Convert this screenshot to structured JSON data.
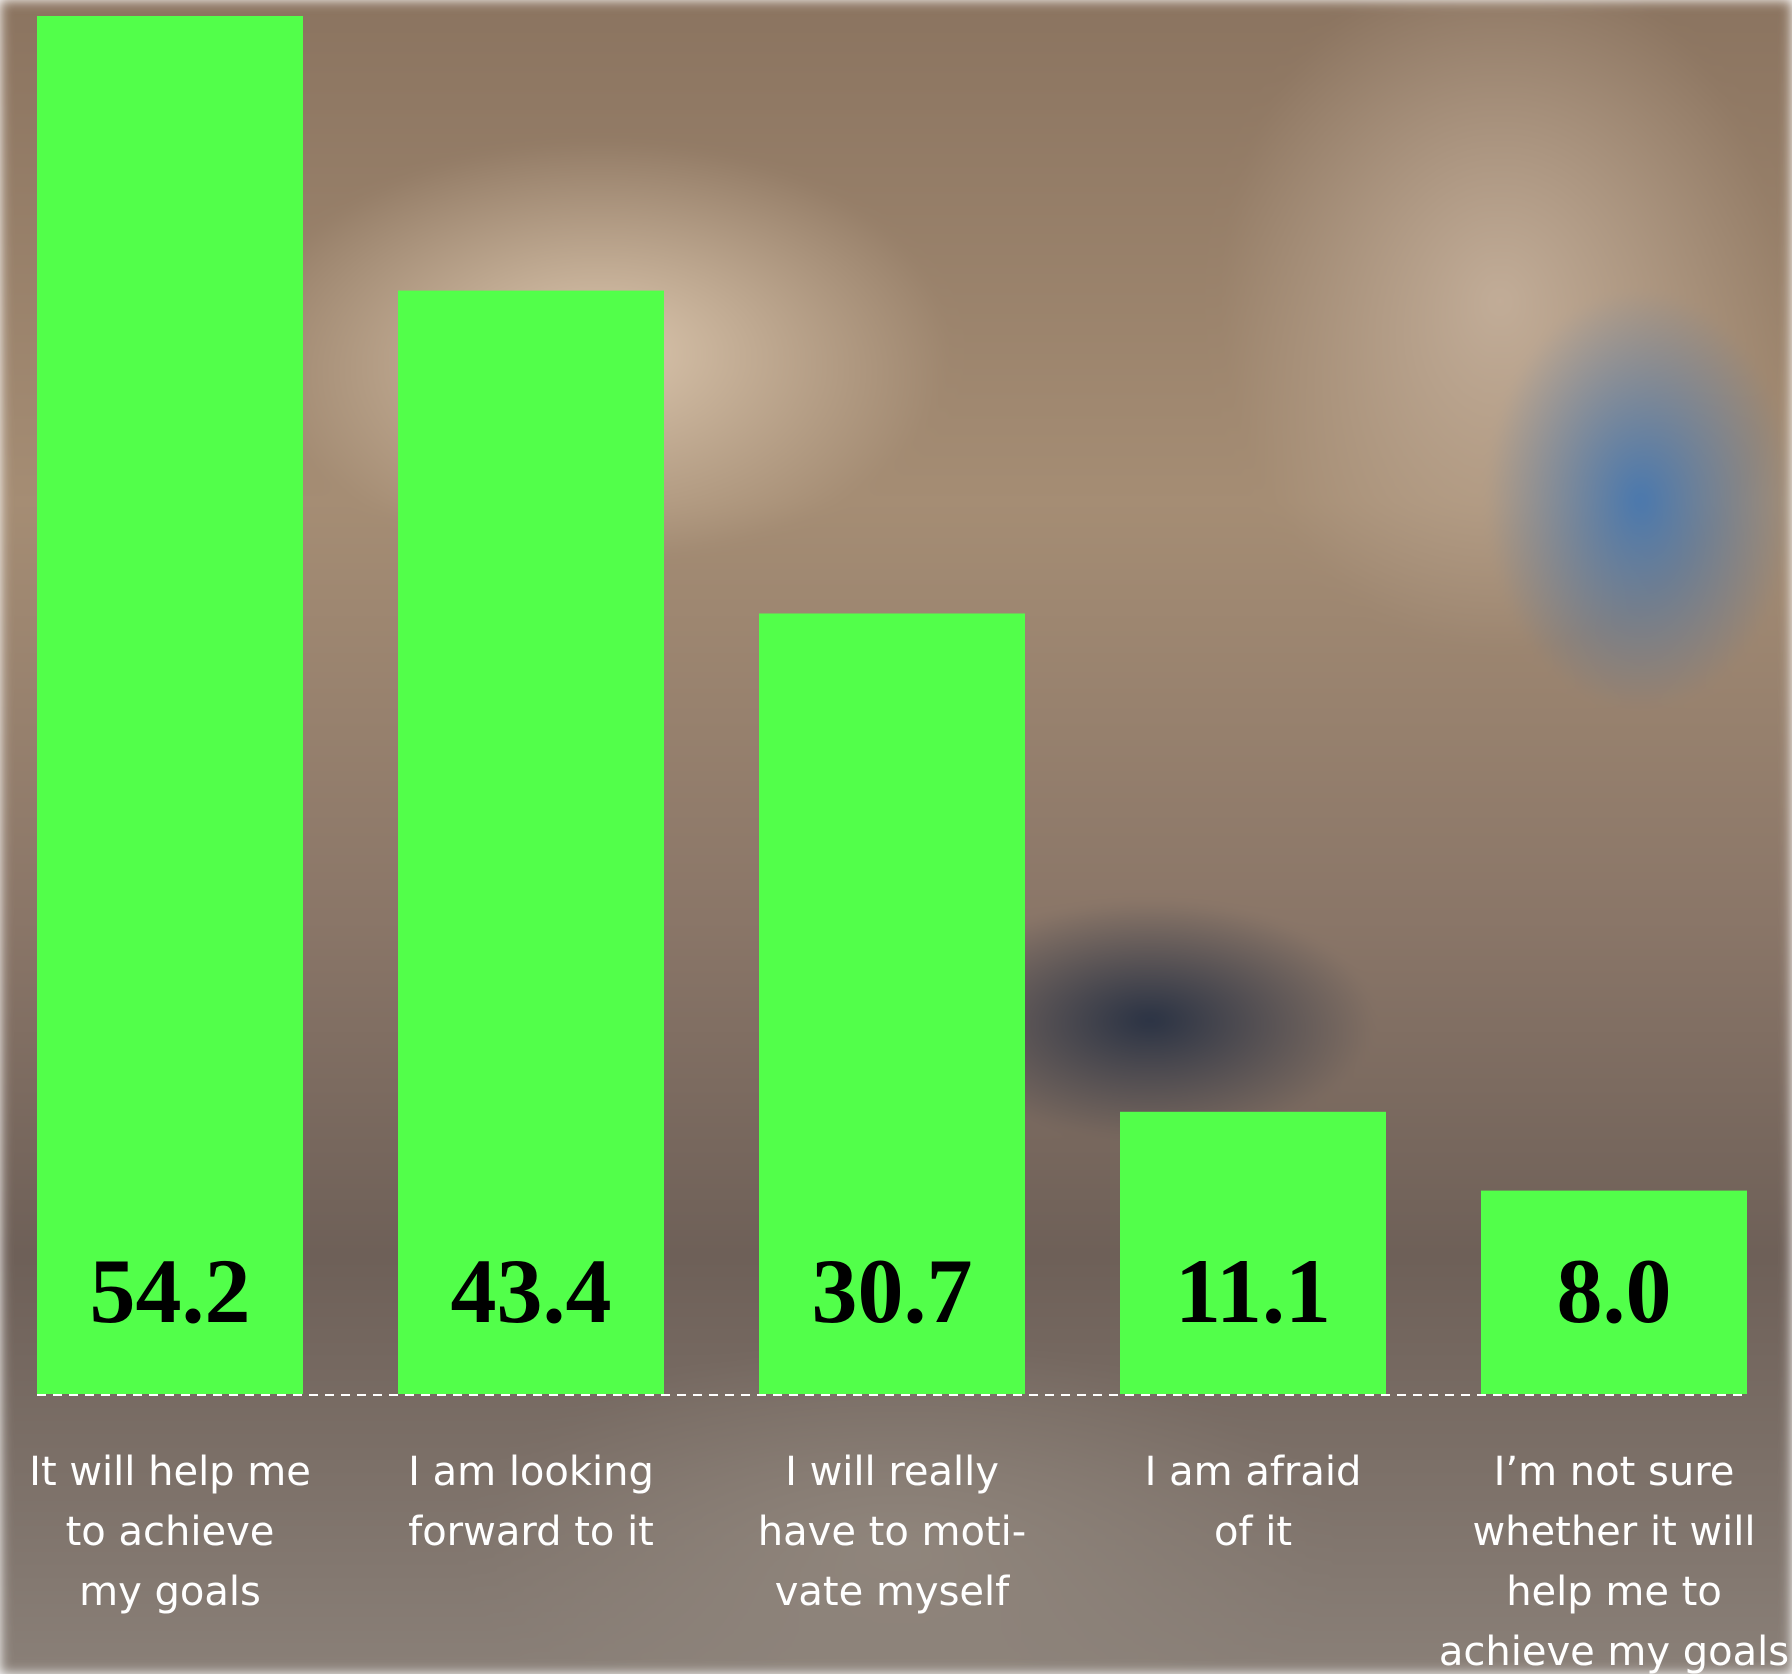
{
  "chart_data": {
    "type": "bar",
    "categories": [
      [
        "It will help me",
        "to achieve",
        "my goals"
      ],
      [
        "I am looking",
        "forward to it"
      ],
      [
        "I will really",
        "have to moti-",
        "vate myself"
      ],
      [
        "I am afraid",
        "of it"
      ],
      [
        "I’m not sure",
        "whether it will",
        "help me to",
        "achieve my goals"
      ]
    ],
    "values": [
      54.2,
      43.4,
      30.7,
      11.1,
      8.0
    ],
    "value_labels": [
      "54.2",
      "43.4",
      "30.7",
      "11.1",
      "8.0"
    ],
    "color": "#52ff4a"
  }
}
